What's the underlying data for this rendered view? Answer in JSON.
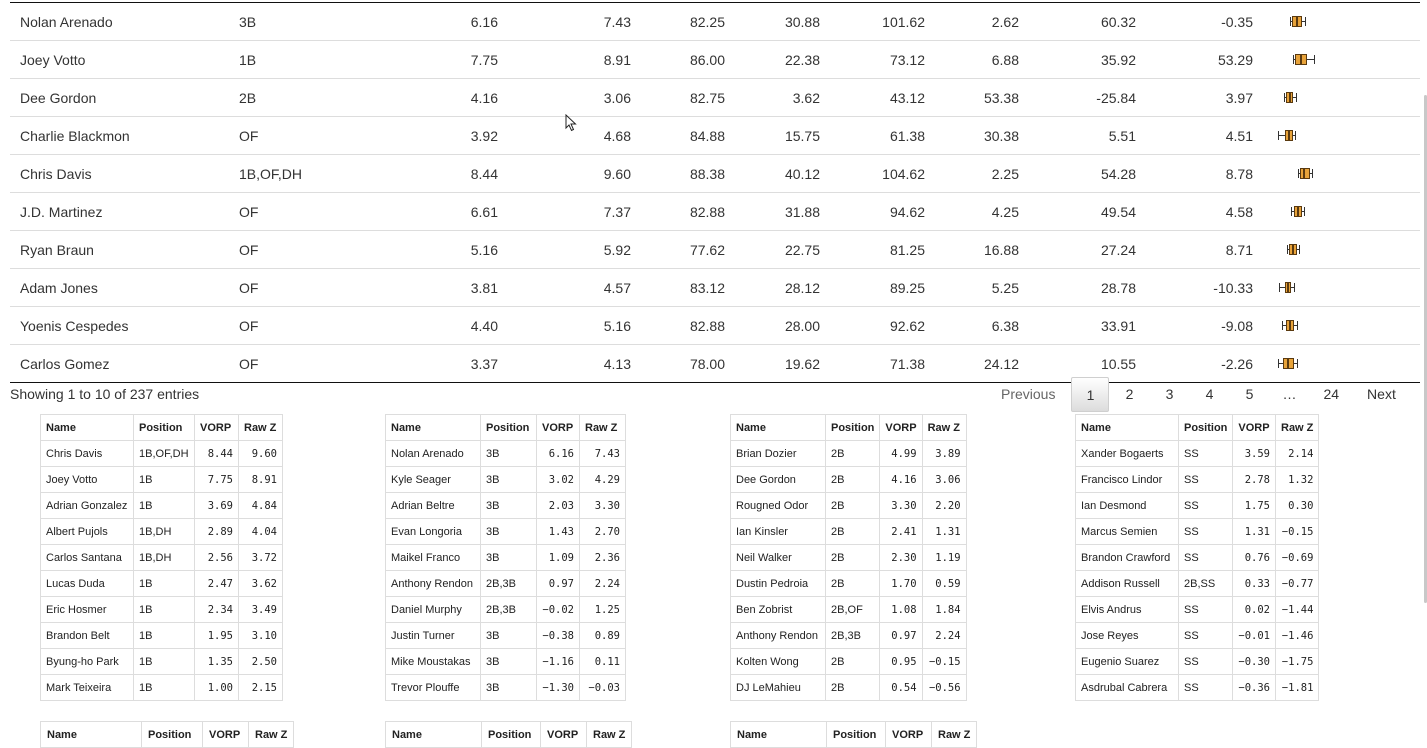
{
  "main_table": {
    "rows": [
      {
        "name": "Nolan Arenado",
        "pos": "3B",
        "c1": "6.16",
        "c2": "7.43",
        "c3": "82.25",
        "c4": "30.88",
        "c5": "101.62",
        "c6": "2.62",
        "c7": "60.32",
        "c8": "-0.35"
      },
      {
        "name": "Joey Votto",
        "pos": "1B",
        "c1": "7.75",
        "c2": "8.91",
        "c3": "86.00",
        "c4": "22.38",
        "c5": "73.12",
        "c6": "6.88",
        "c7": "35.92",
        "c8": "53.29"
      },
      {
        "name": "Dee Gordon",
        "pos": "2B",
        "c1": "4.16",
        "c2": "3.06",
        "c3": "82.75",
        "c4": "3.62",
        "c5": "43.12",
        "c6": "53.38",
        "c7": "-25.84",
        "c8": "3.97"
      },
      {
        "name": "Charlie Blackmon",
        "pos": "OF",
        "c1": "3.92",
        "c2": "4.68",
        "c3": "84.88",
        "c4": "15.75",
        "c5": "61.38",
        "c6": "30.38",
        "c7": "5.51",
        "c8": "4.51"
      },
      {
        "name": "Chris Davis",
        "pos": "1B,OF,DH",
        "c1": "8.44",
        "c2": "9.60",
        "c3": "88.38",
        "c4": "40.12",
        "c5": "104.62",
        "c6": "2.25",
        "c7": "54.28",
        "c8": "8.78"
      },
      {
        "name": "J.D. Martinez",
        "pos": "OF",
        "c1": "6.61",
        "c2": "7.37",
        "c3": "82.88",
        "c4": "31.88",
        "c5": "94.62",
        "c6": "4.25",
        "c7": "49.54",
        "c8": "4.58"
      },
      {
        "name": "Ryan Braun",
        "pos": "OF",
        "c1": "5.16",
        "c2": "5.92",
        "c3": "77.62",
        "c4": "22.75",
        "c5": "81.25",
        "c6": "16.88",
        "c7": "27.24",
        "c8": "8.71"
      },
      {
        "name": "Adam Jones",
        "pos": "OF",
        "c1": "3.81",
        "c2": "4.57",
        "c3": "83.12",
        "c4": "28.12",
        "c5": "89.25",
        "c6": "5.25",
        "c7": "28.78",
        "c8": "-10.33"
      },
      {
        "name": "Yoenis Cespedes",
        "pos": "OF",
        "c1": "4.40",
        "c2": "5.16",
        "c3": "82.88",
        "c4": "28.00",
        "c5": "92.62",
        "c6": "6.38",
        "c7": "33.91",
        "c8": "-9.08"
      },
      {
        "name": "Carlos Gomez",
        "pos": "OF",
        "c1": "3.37",
        "c2": "4.13",
        "c3": "78.00",
        "c4": "19.62",
        "c5": "71.38",
        "c6": "24.12",
        "c7": "10.55",
        "c8": "-2.26"
      }
    ]
  },
  "info_text": "Showing 1 to 10 of 237 entries",
  "pagination": {
    "previous": "Previous",
    "pages": [
      "1",
      "2",
      "3",
      "4",
      "5"
    ],
    "ellipsis": "…",
    "last": "24",
    "next": "Next",
    "current": "1"
  },
  "position_tables": [
    {
      "headers": [
        "Name",
        "Position",
        "VORP",
        "Raw Z"
      ],
      "rows": [
        [
          "Chris Davis",
          "1B,OF,DH",
          "8.44",
          "9.60"
        ],
        [
          "Joey Votto",
          "1B",
          "7.75",
          "8.91"
        ],
        [
          "Adrian Gonzalez",
          "1B",
          "3.69",
          "4.84"
        ],
        [
          "Albert Pujols",
          "1B,DH",
          "2.89",
          "4.04"
        ],
        [
          "Carlos Santana",
          "1B,DH",
          "2.56",
          "3.72"
        ],
        [
          "Lucas Duda",
          "1B",
          "2.47",
          "3.62"
        ],
        [
          "Eric Hosmer",
          "1B",
          "2.34",
          "3.49"
        ],
        [
          "Brandon Belt",
          "1B",
          "1.95",
          "3.10"
        ],
        [
          "Byung-ho Park",
          "1B",
          "1.35",
          "2.50"
        ],
        [
          "Mark Teixeira",
          "1B",
          "1.00",
          "2.15"
        ]
      ]
    },
    {
      "headers": [
        "Name",
        "Position",
        "VORP",
        "Raw Z"
      ],
      "rows": [
        [
          "Nolan Arenado",
          "3B",
          "6.16",
          "7.43"
        ],
        [
          "Kyle Seager",
          "3B",
          "3.02",
          "4.29"
        ],
        [
          "Adrian Beltre",
          "3B",
          "2.03",
          "3.30"
        ],
        [
          "Evan Longoria",
          "3B",
          "1.43",
          "2.70"
        ],
        [
          "Maikel Franco",
          "3B",
          "1.09",
          "2.36"
        ],
        [
          "Anthony Rendon",
          "2B,3B",
          "0.97",
          "2.24"
        ],
        [
          "Daniel Murphy",
          "2B,3B",
          "−0.02",
          "1.25"
        ],
        [
          "Justin Turner",
          "3B",
          "−0.38",
          "0.89"
        ],
        [
          "Mike Moustakas",
          "3B",
          "−1.16",
          "0.11"
        ],
        [
          "Trevor Plouffe",
          "3B",
          "−1.30",
          "−0.03"
        ]
      ]
    },
    {
      "headers": [
        "Name",
        "Position",
        "VORP",
        "Raw Z"
      ],
      "rows": [
        [
          "Brian Dozier",
          "2B",
          "4.99",
          "3.89"
        ],
        [
          "Dee Gordon",
          "2B",
          "4.16",
          "3.06"
        ],
        [
          "Rougned Odor",
          "2B",
          "3.30",
          "2.20"
        ],
        [
          "Ian Kinsler",
          "2B",
          "2.41",
          "1.31"
        ],
        [
          "Neil Walker",
          "2B",
          "2.30",
          "1.19"
        ],
        [
          "Dustin Pedroia",
          "2B",
          "1.70",
          "0.59"
        ],
        [
          "Ben Zobrist",
          "2B,OF",
          "1.08",
          "1.84"
        ],
        [
          "Anthony Rendon",
          "2B,3B",
          "0.97",
          "2.24"
        ],
        [
          "Kolten Wong",
          "2B",
          "0.95",
          "−0.15"
        ],
        [
          "DJ LeMahieu",
          "2B",
          "0.54",
          "−0.56"
        ]
      ]
    },
    {
      "headers": [
        "Name",
        "Position",
        "VORP",
        "Raw Z"
      ],
      "rows": [
        [
          "Xander Bogaerts",
          "SS",
          "3.59",
          "2.14"
        ],
        [
          "Francisco Lindor",
          "SS",
          "2.78",
          "1.32"
        ],
        [
          "Ian Desmond",
          "SS",
          "1.75",
          "0.30"
        ],
        [
          "Marcus Semien",
          "SS",
          "1.31",
          "−0.15"
        ],
        [
          "Brandon Crawford",
          "SS",
          "0.76",
          "−0.69"
        ],
        [
          "Addison Russell",
          "2B,SS",
          "0.33",
          "−0.77"
        ],
        [
          "Elvis Andrus",
          "SS",
          "0.02",
          "−1.44"
        ],
        [
          "Jose Reyes",
          "SS",
          "−0.01",
          "−1.46"
        ],
        [
          "Eugenio Suarez",
          "SS",
          "−0.30",
          "−1.75"
        ],
        [
          "Asdrubal Cabrera",
          "SS",
          "−0.36",
          "−1.81"
        ]
      ]
    }
  ],
  "bottom_tables": [
    {
      "headers": [
        "Name",
        "Position",
        "VORP",
        "Raw Z"
      ]
    },
    {
      "headers": [
        "Name",
        "Position",
        "VORP",
        "Raw Z"
      ]
    },
    {
      "headers": [
        "Name",
        "Position",
        "VORP",
        "Raw Z"
      ]
    }
  ],
  "colors": {
    "box_fill": "#e8a33a",
    "box_stroke": "#5a3a10",
    "row_border": "#dddddd"
  }
}
